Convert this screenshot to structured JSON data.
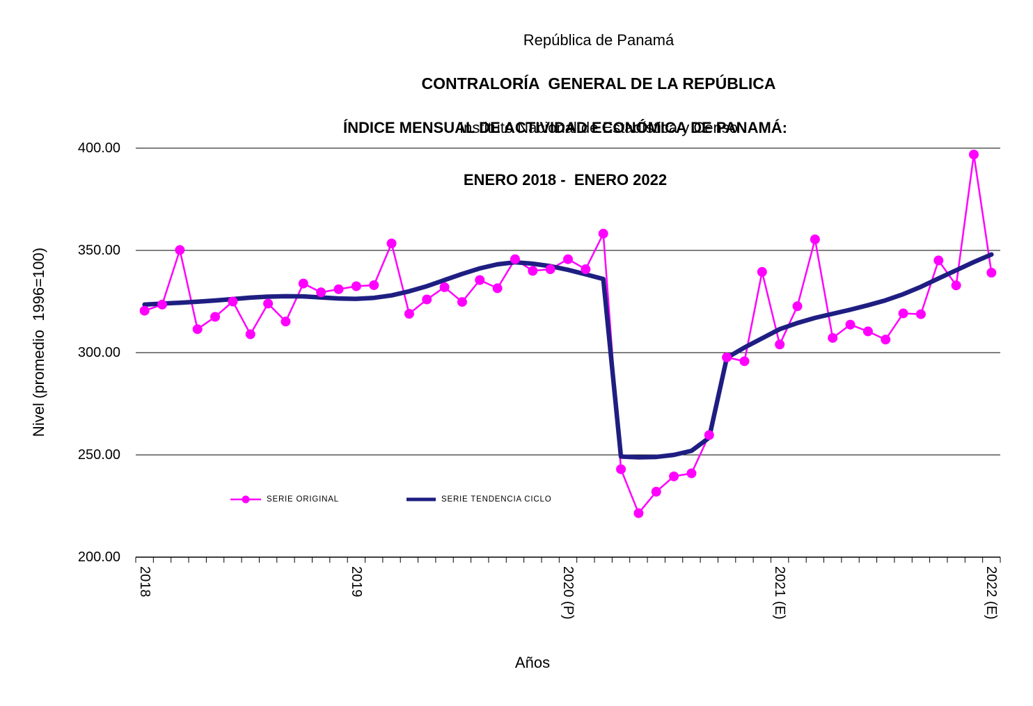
{
  "header": {
    "line1": "República de Panamá",
    "line2": "CONTRALORÍA  GENERAL DE LA REPÚBLICA",
    "line3": "Instituto Nacional de Estadística y Censo"
  },
  "title": {
    "line1": "ÍNDICE MENSUAL DE ACTIVIDAD ECONÓMICA DE PANAMÁ:",
    "line2": "ENERO 2018 -  ENERO 2022"
  },
  "axes": {
    "y_title": "Nivel (promedio  1996=100)",
    "x_title": "Años",
    "y_ticks": [
      "400.00",
      "350.00",
      "300.00",
      "250.00",
      "200.00"
    ]
  },
  "legend": [
    {
      "label": "SERIE ORIGINAL",
      "color": "#FF00FF",
      "type": "line-marker"
    },
    {
      "label": "SERIE TENDENCIA CICLO",
      "color": "#1E1E82",
      "type": "line"
    }
  ],
  "colors": {
    "serie_original": "#FF00FF",
    "serie_tendencia": "#1E1E82",
    "grid": "#000000",
    "text": "#000000",
    "background": "#FFFFFF"
  },
  "chart_data": {
    "type": "line",
    "title": "ÍNDICE MENSUAL DE ACTIVIDAD ECONÓMICA DE PANAMÁ: ENERO 2018 - ENERO 2022",
    "xlabel": "Años",
    "ylabel": "Nivel (promedio 1996=100)",
    "ylim": [
      200,
      400
    ],
    "y_tick_values": [
      400,
      350,
      300,
      250,
      200
    ],
    "grid": "horizontal",
    "legend_position": "inside-lower-left",
    "months": [
      "2018-01",
      "2018-02",
      "2018-03",
      "2018-04",
      "2018-05",
      "2018-06",
      "2018-07",
      "2018-08",
      "2018-09",
      "2018-10",
      "2018-11",
      "2018-12",
      "2019-01",
      "2019-02",
      "2019-03",
      "2019-04",
      "2019-05",
      "2019-06",
      "2019-07",
      "2019-08",
      "2019-09",
      "2019-10",
      "2019-11",
      "2019-12",
      "2020-01",
      "2020-02",
      "2020-03",
      "2020-04",
      "2020-05",
      "2020-06",
      "2020-07",
      "2020-08",
      "2020-09",
      "2020-10",
      "2020-11",
      "2020-12",
      "2021-01",
      "2021-02",
      "2021-03",
      "2021-04",
      "2021-05",
      "2021-06",
      "2021-07",
      "2021-08",
      "2021-09",
      "2021-10",
      "2021-11",
      "2021-12",
      "2022-01"
    ],
    "year_tick_labels": [
      {
        "label": "2018",
        "month_index": 0
      },
      {
        "label": "2019",
        "month_index": 12
      },
      {
        "label": "2020 (P)",
        "month_index": 24
      },
      {
        "label": "2021 (E)",
        "month_index": 36
      },
      {
        "label": "2022 (E)",
        "month_index": 48
      }
    ],
    "series": [
      {
        "name": "SERIE ORIGINAL",
        "color": "#FF00FF",
        "marker": "circle",
        "values": [
          320.5,
          323.5,
          350.2,
          311.5,
          317.5,
          325.0,
          309.0,
          324.0,
          315.2,
          333.8,
          329.5,
          331.0,
          332.5,
          333.0,
          353.4,
          319.0,
          326.0,
          332.0,
          324.8,
          335.5,
          331.5,
          345.7,
          340.0,
          340.8,
          345.7,
          340.8,
          358.2,
          243.0,
          221.5,
          232.0,
          239.5,
          241.0,
          259.7,
          297.7,
          295.8,
          339.5,
          304.0,
          322.7,
          355.4,
          307.2,
          313.7,
          310.4,
          306.4,
          319.2,
          318.8,
          345.1,
          332.9,
          396.9,
          339.1
        ]
      },
      {
        "name": "SERIE TENDENCIA CICLO",
        "color": "#1E1E82",
        "marker": "none",
        "values": [
          323.5,
          324.0,
          324.4,
          324.9,
          325.5,
          326.2,
          326.9,
          327.4,
          327.6,
          327.5,
          327.0,
          326.5,
          326.3,
          326.8,
          328.0,
          330.0,
          332.5,
          335.5,
          338.5,
          341.2,
          343.2,
          344.2,
          343.5,
          342.3,
          340.5,
          338.3,
          336.0,
          249.2,
          248.8,
          249.0,
          250.0,
          252.0,
          258.4,
          297.5,
          302.5,
          307.0,
          311.5,
          314.5,
          317.0,
          319.0,
          321.0,
          323.2,
          325.6,
          328.6,
          332.2,
          336.3,
          340.3,
          344.3,
          348.0
        ]
      }
    ]
  }
}
